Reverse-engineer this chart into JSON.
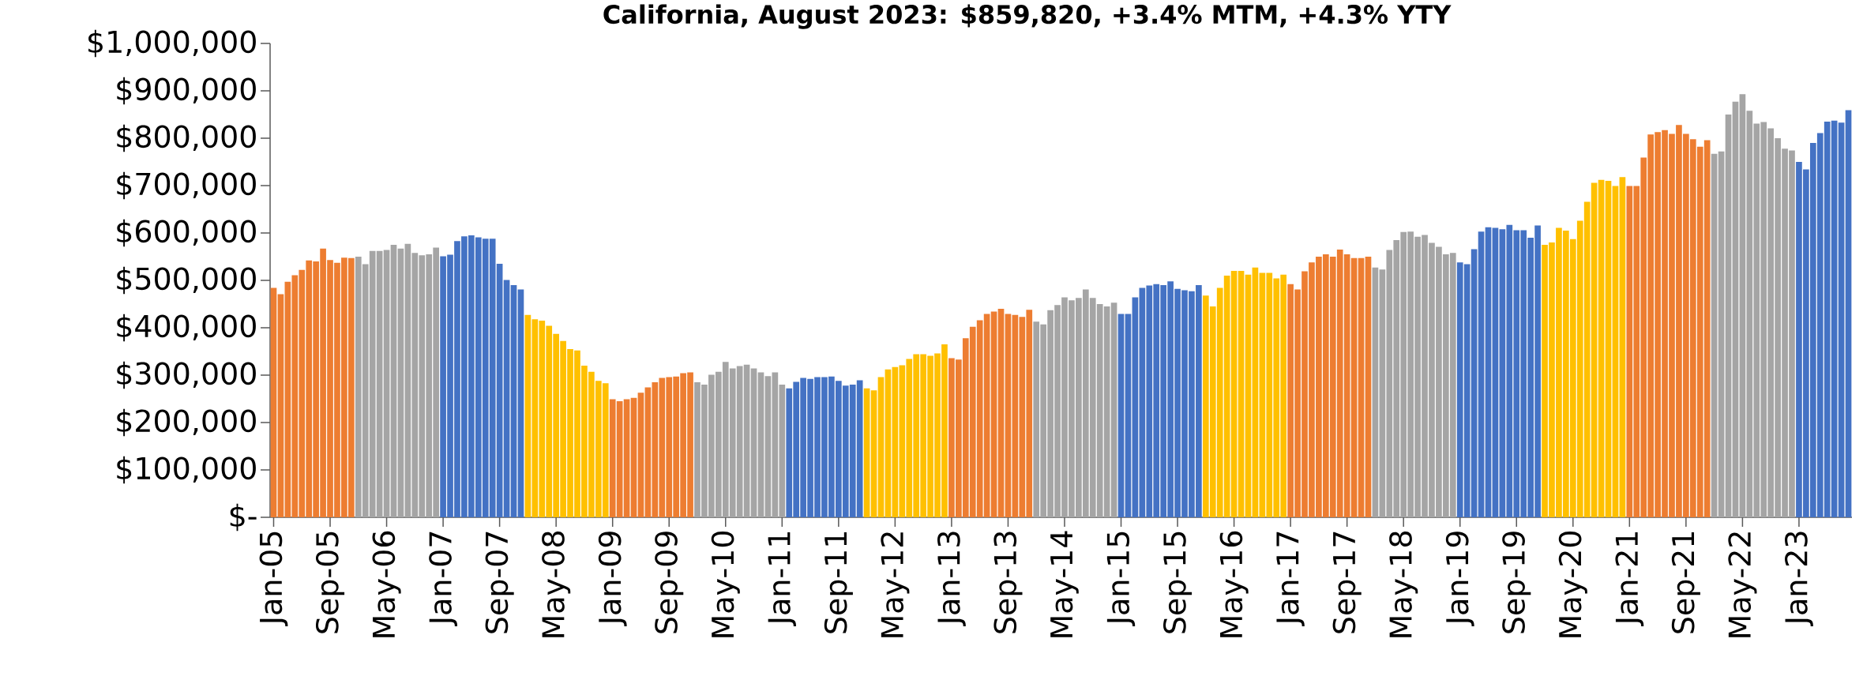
{
  "chart_data": {
    "type": "bar",
    "title": "California, August 2023: $859,820, +3.4% MTM, +4.3% YTY",
    "categories": [
      "Jan-05",
      null,
      null,
      null,
      null,
      null,
      null,
      null,
      "Sep-05",
      null,
      null,
      null,
      null,
      null,
      null,
      null,
      "May-06",
      null,
      null,
      null,
      null,
      null,
      null,
      null,
      "Jan-07",
      null,
      null,
      null,
      null,
      null,
      null,
      null,
      "Sep-07",
      null,
      null,
      null,
      null,
      null,
      null,
      null,
      "May-08",
      null,
      null,
      null,
      null,
      null,
      null,
      null,
      "Jan-09",
      null,
      null,
      null,
      null,
      null,
      null,
      null,
      "Sep-09",
      null,
      null,
      null,
      null,
      null,
      null,
      null,
      "May-10",
      null,
      null,
      null,
      null,
      null,
      null,
      null,
      "Jan-11",
      null,
      null,
      null,
      null,
      null,
      null,
      null,
      "Sep-11",
      null,
      null,
      null,
      null,
      null,
      null,
      null,
      "May-12",
      null,
      null,
      null,
      null,
      null,
      null,
      null,
      "Jan-13",
      null,
      null,
      null,
      null,
      null,
      null,
      null,
      "Sep-13",
      null,
      null,
      null,
      null,
      null,
      null,
      null,
      "May-14",
      null,
      null,
      null,
      null,
      null,
      null,
      null,
      "Jan-15",
      null,
      null,
      null,
      null,
      null,
      null,
      null,
      "Sep-15",
      null,
      null,
      null,
      null,
      null,
      null,
      null,
      "May-16",
      null,
      null,
      null,
      null,
      null,
      null,
      null,
      "Jan-17",
      null,
      null,
      null,
      null,
      null,
      null,
      null,
      "Sep-17",
      null,
      null,
      null,
      null,
      null,
      null,
      null,
      "May-18",
      null,
      null,
      null,
      null,
      null,
      null,
      null,
      "Jan-19",
      null,
      null,
      null,
      null,
      null,
      null,
      null,
      "Sep-19",
      null,
      null,
      null,
      null,
      null,
      null,
      null,
      "May-20",
      null,
      null,
      null,
      null,
      null,
      null,
      null,
      "Jan-21",
      null,
      null,
      null,
      null,
      null,
      null,
      null,
      "Sep-21",
      null,
      null,
      null,
      null,
      null,
      null,
      null,
      "May-22",
      null,
      null,
      null,
      null,
      null,
      null,
      null,
      "Jan-23",
      null,
      null,
      null,
      null,
      null,
      null,
      null
    ],
    "values": [
      484000,
      471000,
      497000,
      511000,
      522000,
      542000,
      540000,
      567000,
      543000,
      537000,
      548000,
      547000,
      550000,
      534000,
      562000,
      562000,
      564000,
      575000,
      567000,
      577000,
      558000,
      553000,
      555000,
      569000,
      551000,
      554000,
      583000,
      593000,
      595000,
      591000,
      588000,
      588000,
      535000,
      501000,
      490000,
      481000,
      427000,
      418000,
      415000,
      404000,
      387000,
      372000,
      355000,
      352000,
      320000,
      307000,
      288000,
      283000,
      249000,
      245000,
      249000,
      252000,
      263000,
      274000,
      285000,
      294000,
      296000,
      297000,
      304000,
      306000,
      285000,
      280000,
      301000,
      307000,
      328000,
      314000,
      319000,
      322000,
      314000,
      306000,
      298000,
      306000,
      280000,
      272000,
      286000,
      294000,
      292000,
      296000,
      296000,
      297000,
      288000,
      278000,
      280000,
      289000,
      272000,
      268000,
      296000,
      312000,
      317000,
      321000,
      334000,
      344000,
      344000,
      341000,
      346000,
      365000,
      336000,
      333000,
      378000,
      402000,
      416000,
      429000,
      434000,
      440000,
      429000,
      427000,
      423000,
      438000,
      413000,
      407000,
      437000,
      448000,
      464000,
      458000,
      463000,
      481000,
      463000,
      450000,
      445000,
      453000,
      429000,
      429000,
      464000,
      484000,
      489000,
      492000,
      490000,
      498000,
      482000,
      479000,
      477000,
      490000,
      468000,
      445000,
      484000,
      510000,
      520000,
      520000,
      512000,
      527000,
      516000,
      516000,
      504000,
      512000,
      492000,
      481000,
      519000,
      538000,
      550000,
      555000,
      550000,
      565000,
      555000,
      547000,
      547000,
      550000,
      527000,
      523000,
      564000,
      585000,
      602000,
      603000,
      592000,
      596000,
      579000,
      571000,
      555000,
      558000,
      538000,
      534000,
      566000,
      603000,
      612000,
      611000,
      608000,
      617000,
      606000,
      606000,
      590000,
      616000,
      575000,
      580000,
      611000,
      605000,
      587000,
      626000,
      666000,
      706000,
      712000,
      710000,
      699000,
      718000,
      699000,
      699000,
      759000,
      808000,
      813000,
      817000,
      809000,
      828000,
      809000,
      798000,
      782000,
      796000,
      767000,
      772000,
      850000,
      877000,
      893000,
      858000,
      831000,
      834000,
      821000,
      800000,
      778000,
      774000,
      750000,
      734000,
      790000,
      811000,
      835000,
      837000,
      833000,
      859000
    ],
    "colors": [
      "#ed7d31",
      "#ed7d31",
      "#ed7d31",
      "#ed7d31",
      "#ed7d31",
      "#ed7d31",
      "#ed7d31",
      "#ed7d31",
      "#ed7d31",
      "#ed7d31",
      "#ed7d31",
      "#ed7d31",
      "#a5a5a5",
      "#a5a5a5",
      "#a5a5a5",
      "#a5a5a5",
      "#a5a5a5",
      "#a5a5a5",
      "#a5a5a5",
      "#a5a5a5",
      "#a5a5a5",
      "#a5a5a5",
      "#a5a5a5",
      "#a5a5a5",
      "#4472c4",
      "#4472c4",
      "#4472c4",
      "#4472c4",
      "#4472c4",
      "#4472c4",
      "#4472c4",
      "#4472c4",
      "#4472c4",
      "#4472c4",
      "#4472c4",
      "#4472c4",
      "#ffc000",
      "#ffc000",
      "#ffc000",
      "#ffc000",
      "#ffc000",
      "#ffc000",
      "#ffc000",
      "#ffc000",
      "#ffc000",
      "#ffc000",
      "#ffc000",
      "#ffc000",
      "#ed7d31",
      "#ed7d31",
      "#ed7d31",
      "#ed7d31",
      "#ed7d31",
      "#ed7d31",
      "#ed7d31",
      "#ed7d31",
      "#ed7d31",
      "#ed7d31",
      "#ed7d31",
      "#ed7d31",
      "#a5a5a5",
      "#a5a5a5",
      "#a5a5a5",
      "#a5a5a5",
      "#a5a5a5",
      "#a5a5a5",
      "#a5a5a5",
      "#a5a5a5",
      "#a5a5a5",
      "#a5a5a5",
      "#a5a5a5",
      "#a5a5a5",
      "#a5a5a5",
      "#4472c4",
      "#4472c4",
      "#4472c4",
      "#4472c4",
      "#4472c4",
      "#4472c4",
      "#4472c4",
      "#4472c4",
      "#4472c4",
      "#4472c4",
      "#4472c4",
      "#ffc000",
      "#ffc000",
      "#ffc000",
      "#ffc000",
      "#ffc000",
      "#ffc000",
      "#ffc000",
      "#ffc000",
      "#ffc000",
      "#ffc000",
      "#ffc000",
      "#ffc000",
      "#ed7d31",
      "#ed7d31",
      "#ed7d31",
      "#ed7d31",
      "#ed7d31",
      "#ed7d31",
      "#ed7d31",
      "#ed7d31",
      "#ed7d31",
      "#ed7d31",
      "#ed7d31",
      "#ed7d31",
      "#a5a5a5",
      "#a5a5a5",
      "#a5a5a5",
      "#a5a5a5",
      "#a5a5a5",
      "#a5a5a5",
      "#a5a5a5",
      "#a5a5a5",
      "#a5a5a5",
      "#a5a5a5",
      "#a5a5a5",
      "#a5a5a5",
      "#4472c4",
      "#4472c4",
      "#4472c4",
      "#4472c4",
      "#4472c4",
      "#4472c4",
      "#4472c4",
      "#4472c4",
      "#4472c4",
      "#4472c4",
      "#4472c4",
      "#4472c4",
      "#ffc000",
      "#ffc000",
      "#ffc000",
      "#ffc000",
      "#ffc000",
      "#ffc000",
      "#ffc000",
      "#ffc000",
      "#ffc000",
      "#ffc000",
      "#ffc000",
      "#ffc000",
      "#ed7d31",
      "#ed7d31",
      "#ed7d31",
      "#ed7d31",
      "#ed7d31",
      "#ed7d31",
      "#ed7d31",
      "#ed7d31",
      "#ed7d31",
      "#ed7d31",
      "#ed7d31",
      "#ed7d31",
      "#a5a5a5",
      "#a5a5a5",
      "#a5a5a5",
      "#a5a5a5",
      "#a5a5a5",
      "#a5a5a5",
      "#a5a5a5",
      "#a5a5a5",
      "#a5a5a5",
      "#a5a5a5",
      "#a5a5a5",
      "#a5a5a5",
      "#4472c4",
      "#4472c4",
      "#4472c4",
      "#4472c4",
      "#4472c4",
      "#4472c4",
      "#4472c4",
      "#4472c4",
      "#4472c4",
      "#4472c4",
      "#4472c4",
      "#4472c4",
      "#ffc000",
      "#ffc000",
      "#ffc000",
      "#ffc000",
      "#ffc000",
      "#ffc000",
      "#ffc000",
      "#ffc000",
      "#ffc000",
      "#ffc000",
      "#ffc000",
      "#ffc000",
      "#ed7d31",
      "#ed7d31",
      "#ed7d31",
      "#ed7d31",
      "#ed7d31",
      "#ed7d31",
      "#ed7d31",
      "#ed7d31",
      "#ed7d31",
      "#ed7d31",
      "#ed7d31",
      "#ed7d31",
      "#a5a5a5",
      "#a5a5a5",
      "#a5a5a5",
      "#a5a5a5",
      "#a5a5a5",
      "#a5a5a5",
      "#a5a5a5",
      "#a5a5a5",
      "#a5a5a5",
      "#a5a5a5",
      "#a5a5a5",
      "#a5a5a5",
      "#4472c4",
      "#4472c4",
      "#4472c4",
      "#4472c4",
      "#4472c4",
      "#4472c4",
      "#4472c4",
      "#4472c4"
    ],
    "ylim": [
      0,
      1000000
    ],
    "yticks": [
      {
        "value": 0,
        "label": "$-"
      },
      {
        "value": 100000,
        "label": "$100,000"
      },
      {
        "value": 200000,
        "label": "$200,000"
      },
      {
        "value": 300000,
        "label": "$300,000"
      },
      {
        "value": 400000,
        "label": "$400,000"
      },
      {
        "value": 500000,
        "label": "$500,000"
      },
      {
        "value": 600000,
        "label": "$600,000"
      },
      {
        "value": 700000,
        "label": "$700,000"
      },
      {
        "value": 800000,
        "label": "$800,000"
      },
      {
        "value": 900000,
        "label": "$900,000"
      },
      {
        "value": 1000000,
        "label": "$1,000,000"
      }
    ]
  }
}
